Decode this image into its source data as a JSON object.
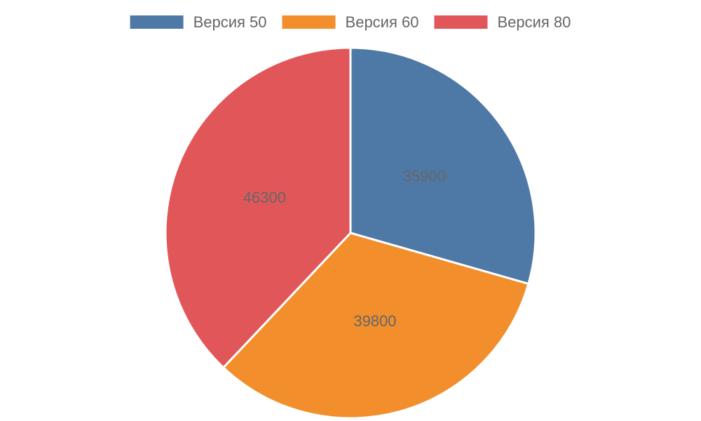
{
  "chart_data": {
    "type": "pie",
    "categories": [
      "Версия 50",
      "Версия 60",
      "Версия 80"
    ],
    "values": [
      35900,
      39800,
      46300
    ],
    "colors": [
      "#4e79a7",
      "#f28e2b",
      "#e15759"
    ],
    "legend": "top"
  }
}
